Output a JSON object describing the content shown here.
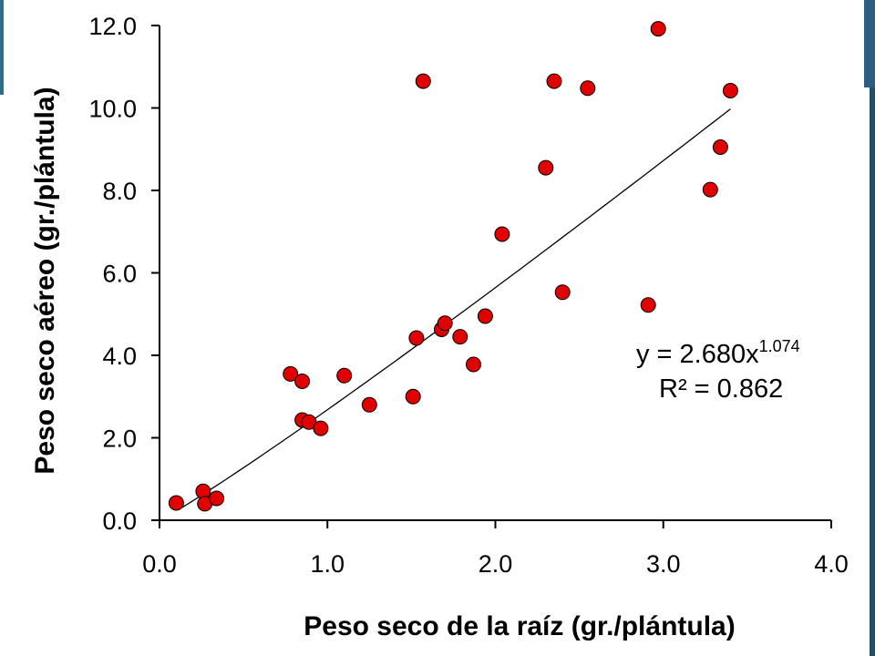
{
  "chart_data": {
    "type": "scatter",
    "title": "",
    "xlabel": "Peso seco de la raíz (gr./plántula)",
    "ylabel": "Peso seco aéreo (gr./plántula)",
    "xlim": [
      0,
      4
    ],
    "ylim": [
      0,
      12
    ],
    "x_ticks": [
      "0.0",
      "1.0",
      "2.0",
      "3.0",
      "4.0"
    ],
    "y_ticks": [
      "0.0",
      "2.0",
      "4.0",
      "6.0",
      "8.0",
      "10.0",
      "12.0"
    ],
    "grid": false,
    "legend": "none",
    "marker_color": "#e00000",
    "points": [
      {
        "x": 0.1,
        "y": 0.42
      },
      {
        "x": 0.26,
        "y": 0.7
      },
      {
        "x": 0.27,
        "y": 0.4
      },
      {
        "x": 0.34,
        "y": 0.53
      },
      {
        "x": 0.78,
        "y": 3.55
      },
      {
        "x": 0.85,
        "y": 3.37
      },
      {
        "x": 0.85,
        "y": 2.43
      },
      {
        "x": 0.89,
        "y": 2.38
      },
      {
        "x": 0.96,
        "y": 2.23
      },
      {
        "x": 1.1,
        "y": 3.51
      },
      {
        "x": 1.25,
        "y": 2.8
      },
      {
        "x": 1.51,
        "y": 3.0
      },
      {
        "x": 1.53,
        "y": 4.42
      },
      {
        "x": 1.57,
        "y": 10.65
      },
      {
        "x": 1.68,
        "y": 4.63
      },
      {
        "x": 1.7,
        "y": 4.78
      },
      {
        "x": 1.79,
        "y": 4.45
      },
      {
        "x": 1.87,
        "y": 3.78
      },
      {
        "x": 1.94,
        "y": 4.95
      },
      {
        "x": 2.04,
        "y": 6.94
      },
      {
        "x": 2.3,
        "y": 8.55
      },
      {
        "x": 2.35,
        "y": 10.65
      },
      {
        "x": 2.4,
        "y": 5.53
      },
      {
        "x": 2.55,
        "y": 10.48
      },
      {
        "x": 2.91,
        "y": 5.22
      },
      {
        "x": 2.97,
        "y": 11.92
      },
      {
        "x": 3.28,
        "y": 8.02
      },
      {
        "x": 3.34,
        "y": 9.05
      },
      {
        "x": 3.4,
        "y": 10.42
      }
    ],
    "trendline": {
      "type": "power",
      "a": 2.68,
      "b": 1.074,
      "x_from": 0.12,
      "x_to": 3.4,
      "color": "#000000"
    },
    "equation": {
      "prefix": "y = 2.680x",
      "exponent": "1.074",
      "r2": "R² = 0.862"
    }
  }
}
